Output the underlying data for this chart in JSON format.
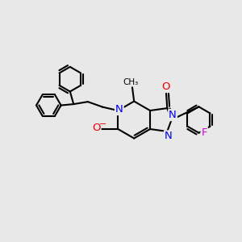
{
  "bg_color": "#e8e8e8",
  "bond_color": "#000000",
  "bond_width": 1.5,
  "atom_colors": {
    "N": "#0000ee",
    "O": "#ee0000",
    "F": "#dd00dd",
    "C": "#000000"
  },
  "font_size_atom": 9.5
}
